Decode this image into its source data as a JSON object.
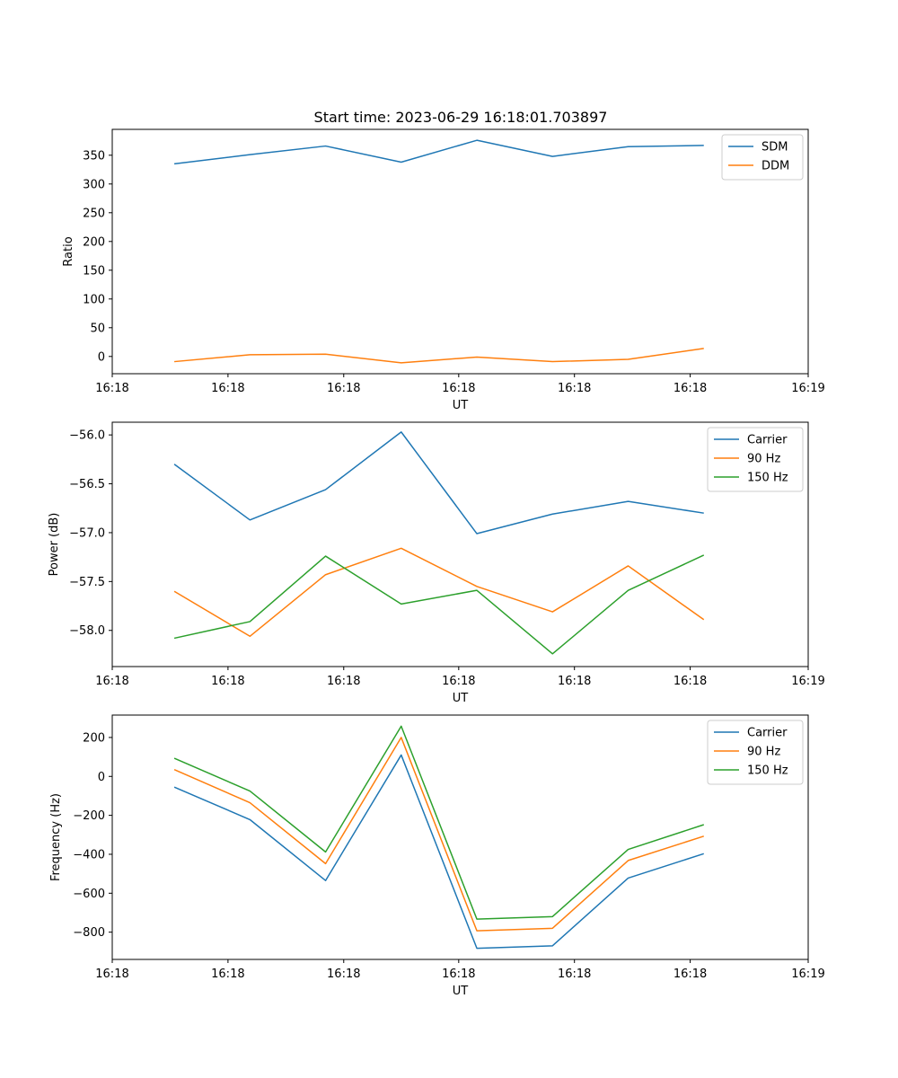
{
  "title": "Start time: 2023-06-29 16:18:01.703897",
  "chart_data": [
    {
      "type": "line",
      "title": "Start time: 2023-06-29 16:18:01.703897",
      "xlabel": "UT",
      "ylabel": "Ratio",
      "x": [
        1,
        2,
        3,
        4,
        5,
        6,
        7,
        8
      ],
      "xlim": [
        0.18,
        9.38
      ],
      "xticks": [
        0.18,
        1.71,
        3.24,
        4.76,
        6.29,
        7.82,
        9.38
      ],
      "xtick_labels": [
        "16:18",
        "16:18",
        "16:18",
        "16:18",
        "16:18",
        "16:18",
        "16:19"
      ],
      "ylim": [
        -30,
        395
      ],
      "yticks": [
        0,
        50,
        100,
        150,
        200,
        250,
        300,
        350
      ],
      "ytick_labels": [
        "0",
        "50",
        "100",
        "150",
        "200",
        "250",
        "300",
        "350"
      ],
      "legend_position": "upper right",
      "grid": false,
      "series": [
        {
          "name": "SDM",
          "color": "#1f77b4",
          "values": [
            335,
            351,
            366,
            338,
            376,
            348,
            365,
            367
          ]
        },
        {
          "name": "DDM",
          "color": "#ff7f0e",
          "values": [
            -9,
            3,
            4,
            -11,
            -1,
            -9,
            -5,
            14
          ]
        }
      ]
    },
    {
      "type": "line",
      "title": "",
      "xlabel": "UT",
      "ylabel": "Power (dB)",
      "x": [
        1,
        2,
        3,
        4,
        5,
        6,
        7,
        8
      ],
      "xlim": [
        0.18,
        9.38
      ],
      "xticks": [
        0.18,
        1.71,
        3.24,
        4.76,
        6.29,
        7.82,
        9.38
      ],
      "xtick_labels": [
        "16:18",
        "16:18",
        "16:18",
        "16:18",
        "16:18",
        "16:18",
        "16:19"
      ],
      "ylim": [
        -58.37,
        -55.87
      ],
      "yticks": [
        -58.0,
        -57.5,
        -57.0,
        -56.5,
        -56.0
      ],
      "ytick_labels": [
        "−58.0",
        "−57.5",
        "−57.0",
        "−56.5",
        "−56.0"
      ],
      "legend_position": "upper right",
      "grid": false,
      "series": [
        {
          "name": "Carrier",
          "color": "#1f77b4",
          "values": [
            -56.3,
            -56.87,
            -56.56,
            -55.97,
            -57.01,
            -56.81,
            -56.68,
            -56.8
          ]
        },
        {
          "name": "90 Hz",
          "color": "#ff7f0e",
          "values": [
            -57.6,
            -58.06,
            -57.43,
            -57.16,
            -57.55,
            -57.81,
            -57.34,
            -57.89
          ]
        },
        {
          "name": "150 Hz",
          "color": "#2ca02c",
          "values": [
            -58.08,
            -57.91,
            -57.24,
            -57.73,
            -57.59,
            -58.24,
            -57.59,
            -57.23
          ]
        }
      ]
    },
    {
      "type": "line",
      "title": "",
      "xlabel": "UT",
      "ylabel": "Frequency (Hz)",
      "x": [
        1,
        2,
        3,
        4,
        5,
        6,
        7,
        8
      ],
      "xlim": [
        0.18,
        9.38
      ],
      "xticks": [
        0.18,
        1.71,
        3.24,
        4.76,
        6.29,
        7.82,
        9.38
      ],
      "xtick_labels": [
        "16:18",
        "16:18",
        "16:18",
        "16:18",
        "16:18",
        "16:18",
        "16:19"
      ],
      "ylim": [
        -940,
        315
      ],
      "yticks": [
        -800,
        -600,
        -400,
        -200,
        0,
        200
      ],
      "ytick_labels": [
        "−800",
        "−600",
        "−400",
        "−200",
        "0",
        "200"
      ],
      "legend_position": "upper right",
      "grid": false,
      "series": [
        {
          "name": "Carrier",
          "color": "#1f77b4",
          "values": [
            -55,
            -222,
            -535,
            110,
            -883,
            -870,
            -522,
            -397
          ]
        },
        {
          "name": "90 Hz",
          "color": "#ff7f0e",
          "values": [
            35,
            -135,
            -448,
            200,
            -793,
            -780,
            -432,
            -307
          ]
        },
        {
          "name": "150 Hz",
          "color": "#2ca02c",
          "values": [
            93,
            -75,
            -388,
            258,
            -733,
            -720,
            -375,
            -248
          ]
        }
      ]
    }
  ]
}
